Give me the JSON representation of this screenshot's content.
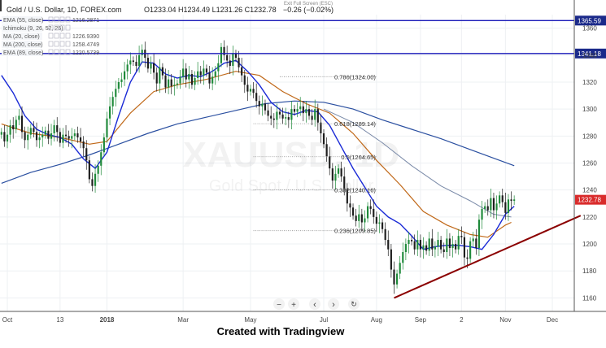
{
  "header": {
    "title": "Gold / U.S. Dollar, 1D, FOREX.com",
    "ohlc": "O1233.04  H1234.49  L1231.26  C1232.78",
    "change": "−0.26 (−0.02%)",
    "exit_fullscreen": "Exit Full Screen (ESC)"
  },
  "indicators": [
    {
      "label": "EMA (55, close)",
      "value": "1216.2871"
    },
    {
      "label": "Ichimoku (9, 26, 52, 26)",
      "value": ""
    },
    {
      "label": "MA (20, close)",
      "value": "1226.9390"
    },
    {
      "label": "MA (200, close)",
      "value": "1258.4749"
    },
    {
      "label": "EMA (89, close)",
      "value": "1220.5739"
    }
  ],
  "watermark": {
    "symbol": "XAUUSD, 1D",
    "name": "Gold Spot / U.S. Dollar"
  },
  "caption": "Created with Tradingview",
  "toolbar": {
    "zoom_out": "−",
    "zoom_in": "+",
    "back": "‹",
    "forward": "›",
    "reset": "↻"
  },
  "colors": {
    "up_candle": "#1f8a3a",
    "down_candle": "#1e1e1e",
    "ma20": "#1a2ad6",
    "ma200": "#2a4fa0",
    "ema55": "#c06818",
    "ema89": "#7a8aa8",
    "hline": "#1a1ab8",
    "trendline": "#8b0000",
    "last_price_bg": "#d92b2b"
  },
  "chart_data": {
    "type": "candlestick",
    "ylim": [
      1150,
      1370
    ],
    "y_ticks": [
      1160,
      1180,
      1200,
      1220,
      1240,
      1260,
      1280,
      1300,
      1320,
      1340,
      1360
    ],
    "x_ticks": [
      "Oct",
      "13",
      "2018",
      "Mar",
      "May",
      "Jul",
      "Aug",
      "Sep",
      "2",
      "Nov",
      "Dec"
    ],
    "x_tick_bars": [
      2,
      20,
      36,
      62,
      85,
      110,
      128,
      143,
      157,
      172,
      188
    ],
    "bars_total": 196,
    "last_bar": 172,
    "closes": [
      1283,
      1276,
      1281,
      1288,
      1285,
      1292,
      1295,
      1283,
      1277,
      1281,
      1286,
      1283,
      1277,
      1279,
      1281,
      1284,
      1278,
      1282,
      1288,
      1283,
      1275,
      1281,
      1280,
      1278,
      1280,
      1282,
      1279,
      1276,
      1271,
      1262,
      1248,
      1243,
      1252,
      1258,
      1268,
      1279,
      1293,
      1302,
      1309,
      1315,
      1320,
      1322,
      1328,
      1333,
      1336,
      1335,
      1332,
      1340,
      1344,
      1338,
      1330,
      1334,
      1327,
      1319,
      1331,
      1325,
      1316,
      1322,
      1317,
      1318,
      1319,
      1324,
      1330,
      1322,
      1326,
      1318,
      1323,
      1328,
      1325,
      1330,
      1327,
      1319,
      1324,
      1328,
      1334,
      1346,
      1340,
      1336,
      1332,
      1341,
      1338,
      1331,
      1325,
      1318,
      1313,
      1315,
      1312,
      1306,
      1302,
      1304,
      1299,
      1295,
      1293,
      1292,
      1298,
      1296,
      1293,
      1294,
      1292,
      1300,
      1298,
      1300,
      1302,
      1297,
      1300,
      1295,
      1292,
      1300,
      1290,
      1282,
      1274,
      1265,
      1256,
      1247,
      1252,
      1256,
      1250,
      1241,
      1230,
      1227,
      1221,
      1217,
      1222,
      1216,
      1219,
      1228,
      1226,
      1220,
      1215,
      1216,
      1211,
      1203,
      1196,
      1181,
      1170,
      1178,
      1186,
      1194,
      1200,
      1203,
      1202,
      1196,
      1203,
      1196,
      1199,
      1195,
      1204,
      1196,
      1198,
      1203,
      1196,
      1194,
      1204,
      1197,
      1200,
      1196,
      1206,
      1205,
      1190,
      1189,
      1202,
      1204,
      1197,
      1218,
      1226,
      1228,
      1225,
      1234,
      1225,
      1230,
      1236,
      1231,
      1223,
      1233,
      1232,
      1233
    ],
    "ma20": [
      [
        0,
        1325
      ],
      [
        4,
        1312
      ],
      [
        8,
        1295
      ],
      [
        12,
        1285
      ],
      [
        16,
        1281
      ],
      [
        20,
        1279
      ],
      [
        24,
        1274
      ],
      [
        28,
        1263
      ],
      [
        32,
        1256
      ],
      [
        36,
        1268
      ],
      [
        40,
        1295
      ],
      [
        44,
        1320
      ],
      [
        48,
        1335
      ],
      [
        52,
        1334
      ],
      [
        56,
        1326
      ],
      [
        60,
        1323
      ],
      [
        64,
        1325
      ],
      [
        68,
        1324
      ],
      [
        72,
        1328
      ],
      [
        76,
        1334
      ],
      [
        80,
        1336
      ],
      [
        84,
        1328
      ],
      [
        88,
        1318
      ],
      [
        92,
        1305
      ],
      [
        96,
        1298
      ],
      [
        100,
        1296
      ],
      [
        104,
        1299
      ],
      [
        108,
        1298
      ],
      [
        112,
        1288
      ],
      [
        116,
        1272
      ],
      [
        120,
        1256
      ],
      [
        124,
        1242
      ],
      [
        128,
        1228
      ],
      [
        132,
        1220
      ],
      [
        136,
        1215
      ],
      [
        140,
        1206
      ],
      [
        144,
        1196
      ],
      [
        148,
        1198
      ],
      [
        152,
        1199
      ],
      [
        156,
        1199
      ],
      [
        160,
        1198
      ],
      [
        164,
        1196
      ],
      [
        168,
        1207
      ],
      [
        172,
        1222
      ],
      [
        175,
        1228
      ]
    ],
    "ma200": [
      [
        0,
        1245
      ],
      [
        10,
        1253
      ],
      [
        20,
        1259
      ],
      [
        30,
        1266
      ],
      [
        40,
        1274
      ],
      [
        50,
        1282
      ],
      [
        60,
        1289
      ],
      [
        70,
        1294
      ],
      [
        80,
        1299
      ],
      [
        90,
        1304
      ],
      [
        100,
        1306
      ],
      [
        110,
        1305
      ],
      [
        120,
        1300
      ],
      [
        130,
        1292
      ],
      [
        140,
        1285
      ],
      [
        150,
        1278
      ],
      [
        160,
        1270
      ],
      [
        170,
        1262
      ],
      [
        175,
        1258
      ]
    ],
    "ema55": [
      [
        0,
        1289
      ],
      [
        10,
        1282
      ],
      [
        20,
        1279
      ],
      [
        30,
        1274
      ],
      [
        36,
        1276
      ],
      [
        44,
        1297
      ],
      [
        52,
        1313
      ],
      [
        60,
        1318
      ],
      [
        70,
        1322
      ],
      [
        80,
        1328
      ],
      [
        88,
        1325
      ],
      [
        96,
        1313
      ],
      [
        104,
        1304
      ],
      [
        112,
        1297
      ],
      [
        120,
        1282
      ],
      [
        128,
        1262
      ],
      [
        136,
        1244
      ],
      [
        144,
        1224
      ],
      [
        152,
        1214
      ],
      [
        160,
        1207
      ],
      [
        166,
        1205
      ],
      [
        172,
        1214
      ],
      [
        174,
        1216
      ]
    ],
    "ema89": [
      [
        110,
        1300
      ],
      [
        120,
        1290
      ],
      [
        130,
        1275
      ],
      [
        140,
        1258
      ],
      [
        150,
        1243
      ],
      [
        160,
        1232
      ],
      [
        168,
        1222
      ],
      [
        174,
        1220
      ]
    ],
    "horizontal_lines": [
      {
        "price": 1365.59,
        "label": "1365.59"
      },
      {
        "price": 1341.18,
        "label": "1341.18"
      }
    ],
    "fib_levels": [
      {
        "price": 1324.0,
        "label": "0.786(1324.00)",
        "from_bar": 95,
        "to_bar": 128
      },
      {
        "price": 1289.14,
        "label": "0.618(1289.14)",
        "from_bar": 86,
        "to_bar": 128
      },
      {
        "price": 1264.65,
        "label": "0.5(1264.65)",
        "from_bar": 86,
        "to_bar": 128
      },
      {
        "price": 1240.16,
        "label": "0.382(1240.16)",
        "from_bar": 86,
        "to_bar": 128
      },
      {
        "price": 1209.85,
        "label": "0.236(1209.85)",
        "from_bar": 86,
        "to_bar": 128
      }
    ],
    "trendline": {
      "start": [
        134,
        1160
      ],
      "end": [
        196,
        1221
      ]
    },
    "last_price": {
      "value": 1232.78,
      "label": "1232.78"
    }
  }
}
